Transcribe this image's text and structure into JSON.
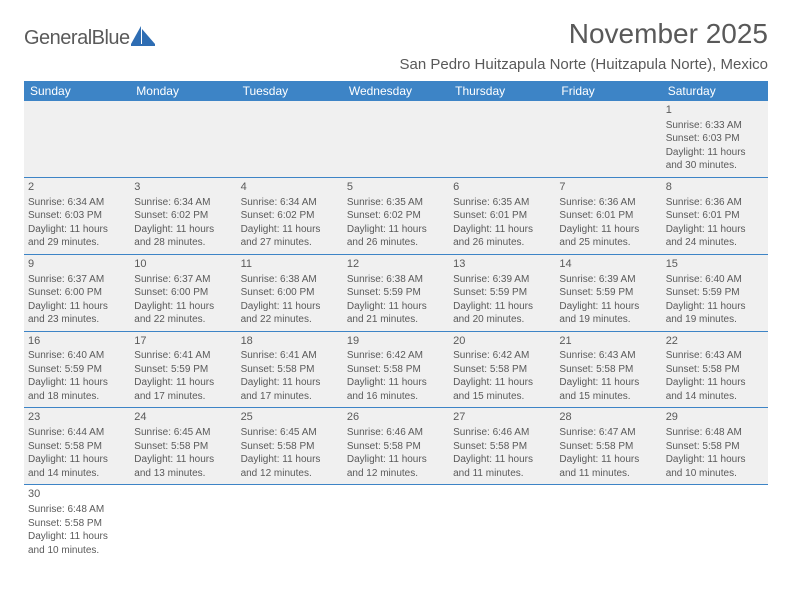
{
  "brand": {
    "name": "GeneralBlue",
    "text_color": "#5a5a5a",
    "accent": "#3d84c6"
  },
  "title": "November 2025",
  "location": "San Pedro Huitzapula Norte (Huitzapula Norte), Mexico",
  "colors": {
    "header_bg": "#3d84c6",
    "header_fg": "#ffffff",
    "cell_bg": "#f0f0f0",
    "text": "#5a5a5a",
    "border": "#3d84c6",
    "page_bg": "#ffffff"
  },
  "weekdays": [
    "Sunday",
    "Monday",
    "Tuesday",
    "Wednesday",
    "Thursday",
    "Friday",
    "Saturday"
  ],
  "weeks": [
    [
      null,
      null,
      null,
      null,
      null,
      null,
      {
        "n": "1",
        "sunrise": "6:33 AM",
        "sunset": "6:03 PM",
        "daylight": "11 hours and 30 minutes."
      }
    ],
    [
      {
        "n": "2",
        "sunrise": "6:34 AM",
        "sunset": "6:03 PM",
        "daylight": "11 hours and 29 minutes."
      },
      {
        "n": "3",
        "sunrise": "6:34 AM",
        "sunset": "6:02 PM",
        "daylight": "11 hours and 28 minutes."
      },
      {
        "n": "4",
        "sunrise": "6:34 AM",
        "sunset": "6:02 PM",
        "daylight": "11 hours and 27 minutes."
      },
      {
        "n": "5",
        "sunrise": "6:35 AM",
        "sunset": "6:02 PM",
        "daylight": "11 hours and 26 minutes."
      },
      {
        "n": "6",
        "sunrise": "6:35 AM",
        "sunset": "6:01 PM",
        "daylight": "11 hours and 26 minutes."
      },
      {
        "n": "7",
        "sunrise": "6:36 AM",
        "sunset": "6:01 PM",
        "daylight": "11 hours and 25 minutes."
      },
      {
        "n": "8",
        "sunrise": "6:36 AM",
        "sunset": "6:01 PM",
        "daylight": "11 hours and 24 minutes."
      }
    ],
    [
      {
        "n": "9",
        "sunrise": "6:37 AM",
        "sunset": "6:00 PM",
        "daylight": "11 hours and 23 minutes."
      },
      {
        "n": "10",
        "sunrise": "6:37 AM",
        "sunset": "6:00 PM",
        "daylight": "11 hours and 22 minutes."
      },
      {
        "n": "11",
        "sunrise": "6:38 AM",
        "sunset": "6:00 PM",
        "daylight": "11 hours and 22 minutes."
      },
      {
        "n": "12",
        "sunrise": "6:38 AM",
        "sunset": "5:59 PM",
        "daylight": "11 hours and 21 minutes."
      },
      {
        "n": "13",
        "sunrise": "6:39 AM",
        "sunset": "5:59 PM",
        "daylight": "11 hours and 20 minutes."
      },
      {
        "n": "14",
        "sunrise": "6:39 AM",
        "sunset": "5:59 PM",
        "daylight": "11 hours and 19 minutes."
      },
      {
        "n": "15",
        "sunrise": "6:40 AM",
        "sunset": "5:59 PM",
        "daylight": "11 hours and 19 minutes."
      }
    ],
    [
      {
        "n": "16",
        "sunrise": "6:40 AM",
        "sunset": "5:59 PM",
        "daylight": "11 hours and 18 minutes."
      },
      {
        "n": "17",
        "sunrise": "6:41 AM",
        "sunset": "5:59 PM",
        "daylight": "11 hours and 17 minutes."
      },
      {
        "n": "18",
        "sunrise": "6:41 AM",
        "sunset": "5:58 PM",
        "daylight": "11 hours and 17 minutes."
      },
      {
        "n": "19",
        "sunrise": "6:42 AM",
        "sunset": "5:58 PM",
        "daylight": "11 hours and 16 minutes."
      },
      {
        "n": "20",
        "sunrise": "6:42 AM",
        "sunset": "5:58 PM",
        "daylight": "11 hours and 15 minutes."
      },
      {
        "n": "21",
        "sunrise": "6:43 AM",
        "sunset": "5:58 PM",
        "daylight": "11 hours and 15 minutes."
      },
      {
        "n": "22",
        "sunrise": "6:43 AM",
        "sunset": "5:58 PM",
        "daylight": "11 hours and 14 minutes."
      }
    ],
    [
      {
        "n": "23",
        "sunrise": "6:44 AM",
        "sunset": "5:58 PM",
        "daylight": "11 hours and 14 minutes."
      },
      {
        "n": "24",
        "sunrise": "6:45 AM",
        "sunset": "5:58 PM",
        "daylight": "11 hours and 13 minutes."
      },
      {
        "n": "25",
        "sunrise": "6:45 AM",
        "sunset": "5:58 PM",
        "daylight": "11 hours and 12 minutes."
      },
      {
        "n": "26",
        "sunrise": "6:46 AM",
        "sunset": "5:58 PM",
        "daylight": "11 hours and 12 minutes."
      },
      {
        "n": "27",
        "sunrise": "6:46 AM",
        "sunset": "5:58 PM",
        "daylight": "11 hours and 11 minutes."
      },
      {
        "n": "28",
        "sunrise": "6:47 AM",
        "sunset": "5:58 PM",
        "daylight": "11 hours and 11 minutes."
      },
      {
        "n": "29",
        "sunrise": "6:48 AM",
        "sunset": "5:58 PM",
        "daylight": "11 hours and 10 minutes."
      }
    ],
    [
      {
        "n": "30",
        "sunrise": "6:48 AM",
        "sunset": "5:58 PM",
        "daylight": "11 hours and 10 minutes."
      },
      null,
      null,
      null,
      null,
      null,
      null
    ]
  ],
  "labels": {
    "sunrise": "Sunrise:",
    "sunset": "Sunset:",
    "daylight": "Daylight:"
  }
}
